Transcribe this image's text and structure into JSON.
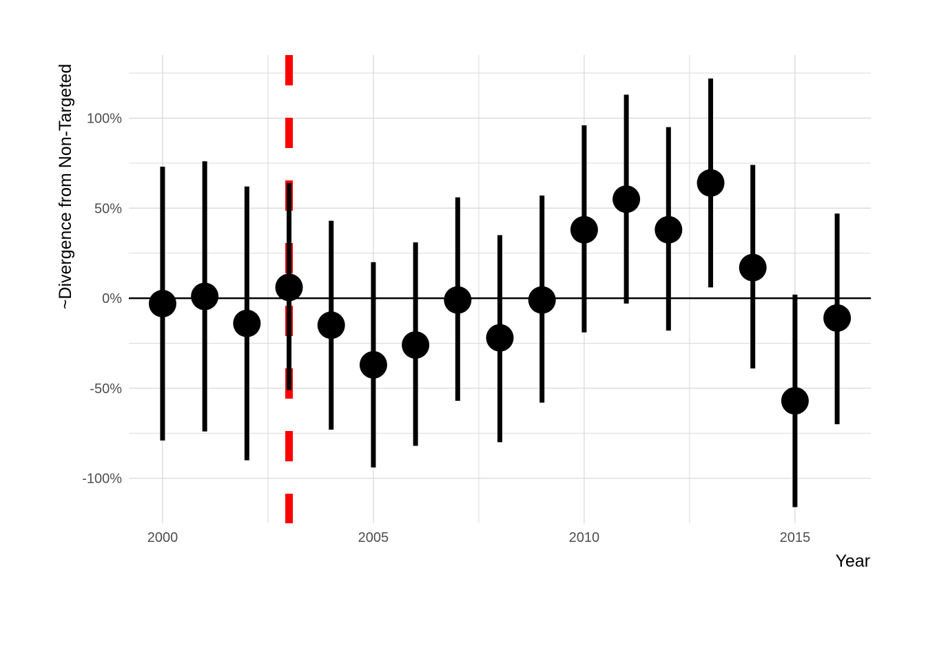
{
  "chart_data": {
    "type": "scatter",
    "subtype": "point-range",
    "xlabel": "Year",
    "ylabel": "~Divergence from Non-Targeted",
    "xlim": [
      1999.2,
      2016.8
    ],
    "ylim": [
      -1.25,
      1.35
    ],
    "x_ticks": [
      2000,
      2005,
      2010,
      2015
    ],
    "x_tick_labels": [
      "2000",
      "2005",
      "2010",
      "2015"
    ],
    "y_ticks": [
      -1.0,
      -0.5,
      0.0,
      0.5,
      1.0
    ],
    "y_tick_labels": [
      "-100%",
      "-50%",
      "0%",
      "50%",
      "100%"
    ],
    "grid": true,
    "reference_lines": [
      {
        "orientation": "horizontal",
        "value": 0,
        "color": "#000000",
        "style": "solid"
      },
      {
        "orientation": "vertical",
        "value": 2003,
        "color": "#ff0000",
        "style": "dashed"
      }
    ],
    "points": [
      {
        "x": 2000,
        "y": -0.03,
        "lower": -0.79,
        "upper": 0.73
      },
      {
        "x": 2001,
        "y": 0.01,
        "lower": -0.74,
        "upper": 0.76
      },
      {
        "x": 2002,
        "y": -0.14,
        "lower": -0.9,
        "upper": 0.62
      },
      {
        "x": 2003,
        "y": 0.06,
        "lower": -0.51,
        "upper": 0.64
      },
      {
        "x": 2004,
        "y": -0.15,
        "lower": -0.73,
        "upper": 0.43
      },
      {
        "x": 2005,
        "y": -0.37,
        "lower": -0.94,
        "upper": 0.2
      },
      {
        "x": 2006,
        "y": -0.26,
        "lower": -0.82,
        "upper": 0.31
      },
      {
        "x": 2007,
        "y": -0.01,
        "lower": -0.57,
        "upper": 0.56
      },
      {
        "x": 2008,
        "y": -0.22,
        "lower": -0.8,
        "upper": 0.35
      },
      {
        "x": 2009,
        "y": -0.01,
        "lower": -0.58,
        "upper": 0.57
      },
      {
        "x": 2010,
        "y": 0.38,
        "lower": -0.19,
        "upper": 0.96
      },
      {
        "x": 2011,
        "y": 0.55,
        "lower": -0.03,
        "upper": 1.13
      },
      {
        "x": 2012,
        "y": 0.38,
        "lower": -0.18,
        "upper": 0.95
      },
      {
        "x": 2013,
        "y": 0.64,
        "lower": 0.06,
        "upper": 1.22
      },
      {
        "x": 2014,
        "y": 0.17,
        "lower": -0.39,
        "upper": 0.74
      },
      {
        "x": 2015,
        "y": -0.57,
        "lower": -1.16,
        "upper": 0.02
      },
      {
        "x": 2016,
        "y": -0.11,
        "lower": -0.7,
        "upper": 0.47
      }
    ],
    "colors": {
      "points": "#000000",
      "grid": "#d9d9d9",
      "zero_line": "#000000",
      "event_line": "#ff0000"
    }
  }
}
